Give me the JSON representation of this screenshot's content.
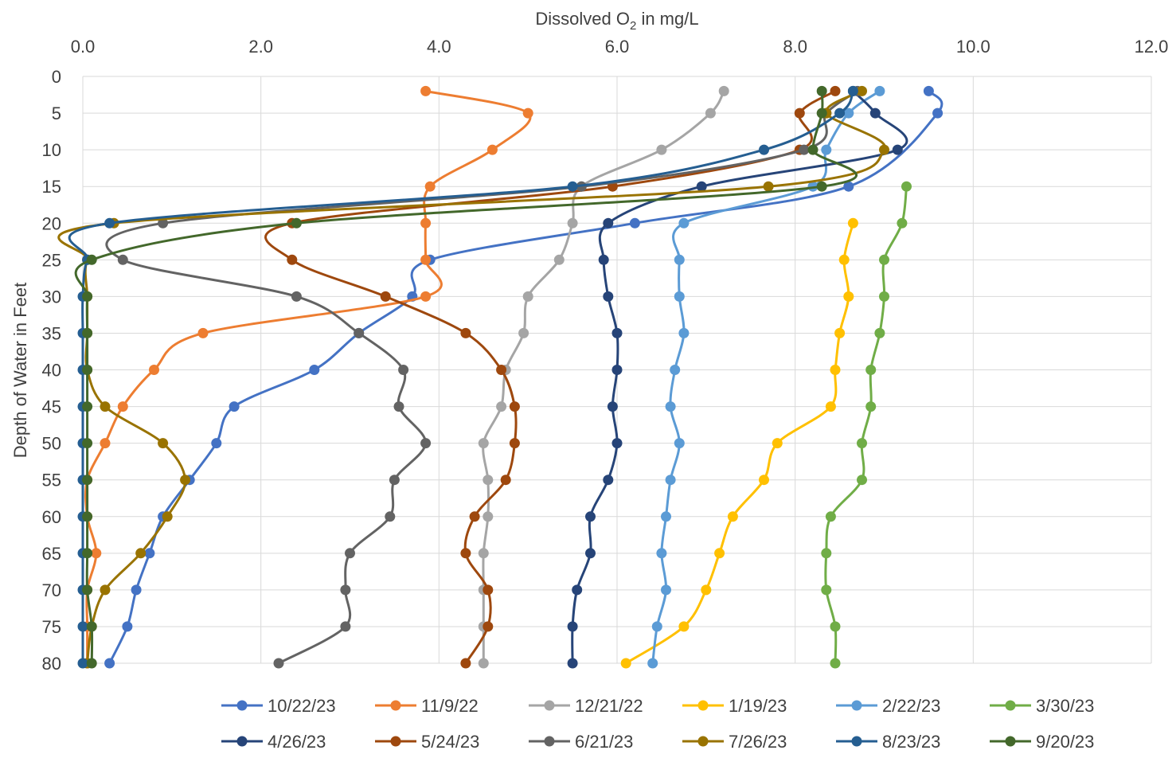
{
  "chart_data": {
    "type": "line",
    "x_axis": {
      "label_prefix": "Dissolved O",
      "label_subscript": "2",
      "label_suffix": " in mg/L",
      "position": "top",
      "range": [
        0,
        12
      ],
      "ticks": [
        "0.0",
        "2.0",
        "4.0",
        "6.0",
        "8.0",
        "10.0",
        "12.0"
      ]
    },
    "y_axis": {
      "label": "Depth of Water in Feet",
      "range": [
        0,
        80
      ],
      "reversed": true,
      "ticks": [
        "0",
        "5",
        "10",
        "15",
        "20",
        "25",
        "30",
        "35",
        "40",
        "45",
        "50",
        "55",
        "60",
        "65",
        "70",
        "75",
        "80"
      ]
    },
    "grid": true,
    "legend_position": "bottom",
    "series": [
      {
        "name": "10/22/23",
        "color": "#4472C4",
        "points": [
          [
            9.5,
            2
          ],
          [
            9.6,
            5
          ],
          [
            8.6,
            15
          ],
          [
            6.2,
            20
          ],
          [
            3.9,
            25
          ],
          [
            3.7,
            30
          ],
          [
            3.1,
            35
          ],
          [
            2.6,
            40
          ],
          [
            1.7,
            45
          ],
          [
            1.5,
            50
          ],
          [
            1.2,
            55
          ],
          [
            0.9,
            60
          ],
          [
            0.75,
            65
          ],
          [
            0.6,
            70
          ],
          [
            0.5,
            75
          ],
          [
            0.3,
            80
          ]
        ]
      },
      {
        "name": "11/9/22",
        "color": "#ED7D31",
        "points": [
          [
            3.85,
            2
          ],
          [
            5.0,
            5
          ],
          [
            4.6,
            10
          ],
          [
            3.9,
            15
          ],
          [
            3.85,
            20
          ],
          [
            3.85,
            25
          ],
          [
            3.85,
            30
          ],
          [
            1.35,
            35
          ],
          [
            0.8,
            40
          ],
          [
            0.45,
            45
          ],
          [
            0.25,
            50
          ],
          [
            0.05,
            55
          ],
          [
            0.05,
            60
          ],
          [
            0.15,
            65
          ],
          [
            0.05,
            70
          ],
          [
            0.05,
            75
          ],
          [
            0.05,
            80
          ]
        ]
      },
      {
        "name": "12/21/22",
        "color": "#A5A5A5",
        "points": [
          [
            7.2,
            2
          ],
          [
            7.05,
            5
          ],
          [
            6.5,
            10
          ],
          [
            5.6,
            15
          ],
          [
            5.5,
            20
          ],
          [
            5.35,
            25
          ],
          [
            5.0,
            30
          ],
          [
            4.95,
            35
          ],
          [
            4.75,
            40
          ],
          [
            4.7,
            45
          ],
          [
            4.5,
            50
          ],
          [
            4.55,
            55
          ],
          [
            4.55,
            60
          ],
          [
            4.5,
            65
          ],
          [
            4.5,
            70
          ],
          [
            4.5,
            75
          ],
          [
            4.5,
            80
          ]
        ]
      },
      {
        "name": "1/19/23",
        "color": "#FFC000",
        "points": [
          [
            8.65,
            20
          ],
          [
            8.55,
            25
          ],
          [
            8.6,
            30
          ],
          [
            8.5,
            35
          ],
          [
            8.45,
            40
          ],
          [
            8.4,
            45
          ],
          [
            7.8,
            50
          ],
          [
            7.65,
            55
          ],
          [
            7.3,
            60
          ],
          [
            7.15,
            65
          ],
          [
            7.0,
            70
          ],
          [
            6.75,
            75
          ],
          [
            6.1,
            80
          ]
        ]
      },
      {
        "name": "2/22/23",
        "color": "#5B9BD5",
        "points": [
          [
            8.95,
            2
          ],
          [
            8.6,
            5
          ],
          [
            8.35,
            10
          ],
          [
            8.2,
            15
          ],
          [
            6.75,
            20
          ],
          [
            6.7,
            25
          ],
          [
            6.7,
            30
          ],
          [
            6.75,
            35
          ],
          [
            6.65,
            40
          ],
          [
            6.6,
            45
          ],
          [
            6.7,
            50
          ],
          [
            6.6,
            55
          ],
          [
            6.55,
            60
          ],
          [
            6.5,
            65
          ],
          [
            6.55,
            70
          ],
          [
            6.45,
            75
          ],
          [
            6.4,
            80
          ]
        ]
      },
      {
        "name": "3/30/23",
        "color": "#70AD47",
        "points": [
          [
            9.25,
            15
          ],
          [
            9.2,
            20
          ],
          [
            9.0,
            25
          ],
          [
            9.0,
            30
          ],
          [
            8.95,
            35
          ],
          [
            8.85,
            40
          ],
          [
            8.85,
            45
          ],
          [
            8.75,
            50
          ],
          [
            8.75,
            55
          ],
          [
            8.4,
            60
          ],
          [
            8.35,
            65
          ],
          [
            8.35,
            70
          ],
          [
            8.45,
            75
          ],
          [
            8.45,
            80
          ]
        ]
      },
      {
        "name": "4/26/23",
        "color": "#264478",
        "points": [
          [
            8.65,
            2
          ],
          [
            8.9,
            5
          ],
          [
            9.15,
            10
          ],
          [
            6.95,
            15
          ],
          [
            5.9,
            20
          ],
          [
            5.85,
            25
          ],
          [
            5.9,
            30
          ],
          [
            6.0,
            35
          ],
          [
            6.0,
            40
          ],
          [
            5.95,
            45
          ],
          [
            6.0,
            50
          ],
          [
            5.9,
            55
          ],
          [
            5.7,
            60
          ],
          [
            5.7,
            65
          ],
          [
            5.55,
            70
          ],
          [
            5.5,
            75
          ],
          [
            5.5,
            80
          ]
        ]
      },
      {
        "name": "5/24/23",
        "color": "#9E480E",
        "points": [
          [
            8.45,
            2
          ],
          [
            8.05,
            5
          ],
          [
            8.05,
            10
          ],
          [
            5.95,
            15
          ],
          [
            2.35,
            20
          ],
          [
            2.35,
            25
          ],
          [
            3.4,
            30
          ],
          [
            4.3,
            35
          ],
          [
            4.7,
            40
          ],
          [
            4.85,
            45
          ],
          [
            4.85,
            50
          ],
          [
            4.75,
            55
          ],
          [
            4.4,
            60
          ],
          [
            4.3,
            65
          ],
          [
            4.55,
            70
          ],
          [
            4.55,
            75
          ],
          [
            4.3,
            80
          ]
        ]
      },
      {
        "name": "6/21/23",
        "color": "#636363",
        "points": [
          [
            8.7,
            2
          ],
          [
            8.35,
            5
          ],
          [
            8.1,
            10
          ],
          [
            5.6,
            15
          ],
          [
            0.9,
            20
          ],
          [
            0.45,
            25
          ],
          [
            2.4,
            30
          ],
          [
            3.1,
            35
          ],
          [
            3.6,
            40
          ],
          [
            3.55,
            45
          ],
          [
            3.85,
            50
          ],
          [
            3.5,
            55
          ],
          [
            3.45,
            60
          ],
          [
            3.0,
            65
          ],
          [
            2.95,
            70
          ],
          [
            2.95,
            75
          ],
          [
            2.2,
            80
          ]
        ]
      },
      {
        "name": "7/26/23",
        "color": "#997300",
        "points": [
          [
            8.75,
            2
          ],
          [
            8.35,
            5
          ],
          [
            9.0,
            10
          ],
          [
            7.7,
            15
          ],
          [
            0.35,
            20
          ],
          [
            0.05,
            25
          ],
          [
            0.05,
            30
          ],
          [
            0.05,
            35
          ],
          [
            0.05,
            40
          ],
          [
            0.25,
            45
          ],
          [
            0.9,
            50
          ],
          [
            1.15,
            55
          ],
          [
            0.95,
            60
          ],
          [
            0.65,
            65
          ],
          [
            0.25,
            70
          ],
          [
            0.1,
            75
          ],
          [
            0.05,
            80
          ]
        ]
      },
      {
        "name": "8/23/23",
        "color": "#255E91",
        "points": [
          [
            8.65,
            2
          ],
          [
            8.5,
            5
          ],
          [
            7.65,
            10
          ],
          [
            5.5,
            15
          ],
          [
            0.3,
            20
          ],
          [
            0.05,
            25
          ],
          [
            0.0,
            30
          ],
          [
            0.0,
            35
          ],
          [
            0.0,
            40
          ],
          [
            0.0,
            45
          ],
          [
            0.0,
            50
          ],
          [
            0.0,
            55
          ],
          [
            0.0,
            60
          ],
          [
            0.0,
            65
          ],
          [
            0.0,
            70
          ],
          [
            0.0,
            75
          ],
          [
            0.0,
            80
          ]
        ]
      },
      {
        "name": "9/20/23",
        "color": "#43682B",
        "points": [
          [
            8.3,
            2
          ],
          [
            8.3,
            5
          ],
          [
            8.2,
            10
          ],
          [
            8.3,
            15
          ],
          [
            2.4,
            20
          ],
          [
            0.1,
            25
          ],
          [
            0.05,
            30
          ],
          [
            0.05,
            35
          ],
          [
            0.05,
            40
          ],
          [
            0.05,
            45
          ],
          [
            0.05,
            50
          ],
          [
            0.05,
            55
          ],
          [
            0.05,
            60
          ],
          [
            0.05,
            65
          ],
          [
            0.05,
            70
          ],
          [
            0.1,
            75
          ],
          [
            0.1,
            80
          ]
        ]
      }
    ]
  }
}
